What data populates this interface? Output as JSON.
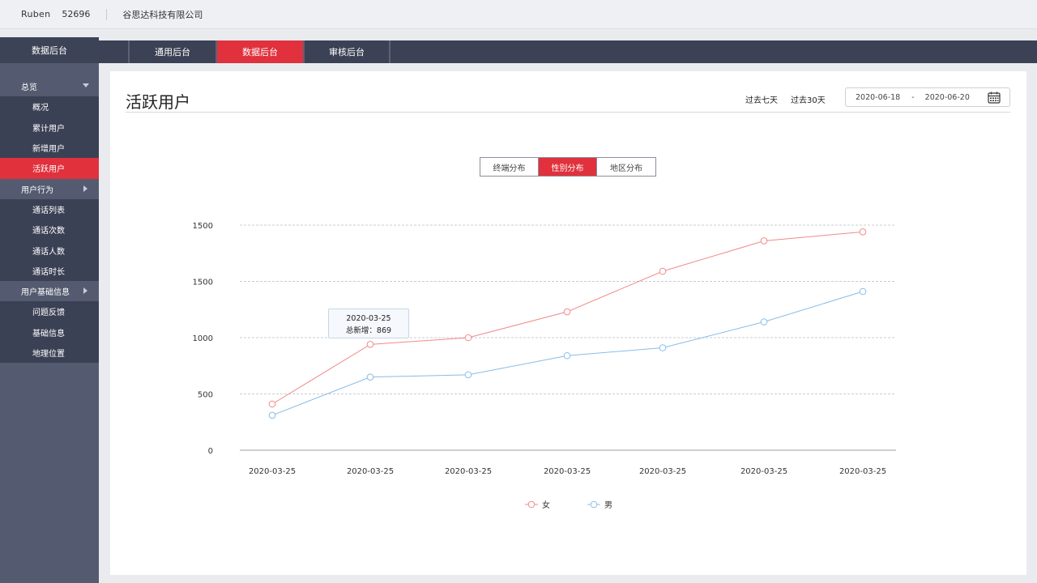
{
  "header": {
    "user": "Ruben",
    "uid": "52696",
    "company": "谷思达科技有限公司"
  },
  "sidebar": {
    "brand": "数据后台",
    "groups": [
      {
        "label": "总览",
        "expanded": true,
        "items": [
          "概况",
          "累计用户",
          "新增用户",
          "活跃用户"
        ]
      },
      {
        "label": "用户行为",
        "expanded": false,
        "items": [
          "通话列表",
          "通话次数",
          "通话人数",
          "通话时长"
        ]
      },
      {
        "label": "用户基础信息",
        "expanded": false,
        "items": [
          "问题反馈",
          "基础信息",
          "地理位置"
        ]
      }
    ],
    "active_item": "活跃用户"
  },
  "tabs": [
    {
      "label": "通用后台"
    },
    {
      "label": "数据后台",
      "active": true
    },
    {
      "label": "审核后台"
    }
  ],
  "page": {
    "title": "活跃用户",
    "quick_ranges": [
      "过去七天",
      "过去30天"
    ],
    "date_from": "2020-06-18",
    "date_sep": "-",
    "date_to": "2020-06-20"
  },
  "segments": [
    {
      "label": "终端分布"
    },
    {
      "label": "性别分布",
      "active": true
    },
    {
      "label": "地区分布"
    }
  ],
  "tooltip": {
    "date": "2020-03-25",
    "text": "总新增：869"
  },
  "colors": {
    "accent": "#e0313d",
    "female": "#f08a88",
    "male": "#88bde8"
  },
  "chart_data": {
    "type": "line",
    "categories": [
      "2020-03-25",
      "2020-03-25",
      "2020-03-25",
      "2020-03-25",
      "2020-03-25",
      "2020-03-25",
      "2020-03-25"
    ],
    "y_ticks": [
      "0",
      "500",
      "1000",
      "1500",
      "1500"
    ],
    "ylim": [
      0,
      2000
    ],
    "grid": true,
    "legend_position": "bottom-center",
    "series": [
      {
        "name": "女",
        "values": [
          410,
          940,
          1000,
          1230,
          1590,
          1860,
          1940
        ]
      },
      {
        "name": "男",
        "values": [
          310,
          650,
          670,
          840,
          910,
          1140,
          1410
        ]
      }
    ]
  }
}
